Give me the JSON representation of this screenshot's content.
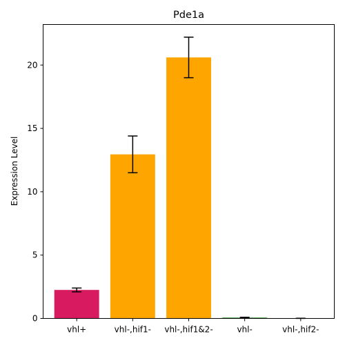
{
  "chart_data": {
    "type": "bar",
    "title": "Pde1a",
    "xlabel": "",
    "ylabel": "Expression Level",
    "ylim": [
      0,
      23.2
    ],
    "yticks": [
      0,
      5,
      10,
      15,
      20
    ],
    "grid": false,
    "categories": [
      "vhl+",
      "vhl-,hif1-",
      "vhl-,hif1&2-",
      "vhl-",
      "vhl-,hif2-"
    ],
    "values": [
      2.25,
      12.95,
      20.6,
      0.06,
      0.01
    ],
    "errors": [
      0.15,
      1.45,
      1.6,
      0.03,
      0.005
    ],
    "colors": [
      "#d81b60",
      "#ffa500",
      "#ffa500",
      "#008000",
      "#ffa500"
    ]
  }
}
